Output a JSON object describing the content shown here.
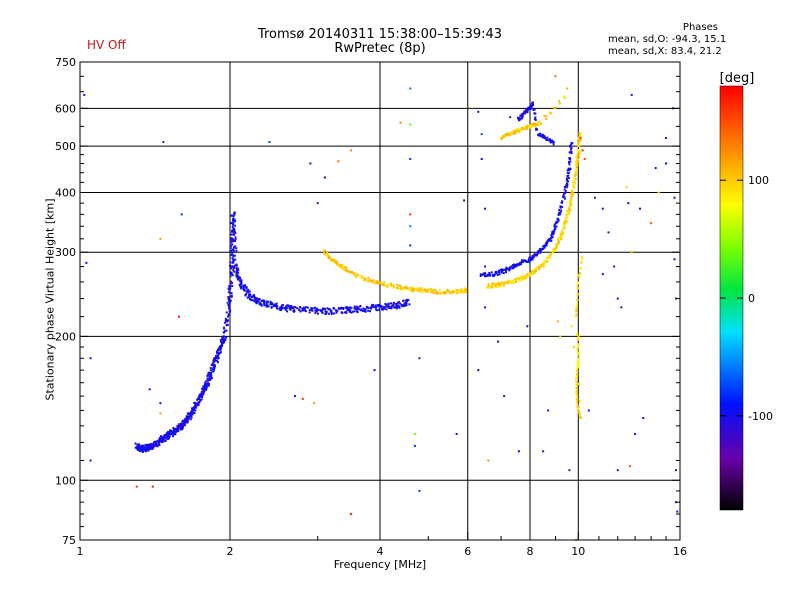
{
  "header": {
    "status": "HV Off",
    "title_line1": "Tromsø 20140311 15:38:00–15:39:43",
    "title_line2": "RwPretec (8p)"
  },
  "stats": {
    "heading": "Phases",
    "line_o": "mean, sd,O: -94.3, 15.1",
    "line_x": "mean, sd,X:  83.4, 21.2"
  },
  "colorbar": {
    "unit": "[deg]",
    "ticks": [
      "100",
      "0",
      "-100"
    ],
    "tick_values": [
      100,
      0,
      -100
    ],
    "range": [
      -180,
      180
    ]
  },
  "chart_data": {
    "type": "scatter",
    "xlabel": "Frequency [MHz]",
    "ylabel": "Stationary phase Virtual Height [km]",
    "xscale": "log",
    "yscale": "log",
    "xlim": [
      1,
      16
    ],
    "ylim": [
      75,
      750
    ],
    "x_ticks": [
      1,
      2,
      4,
      6,
      8,
      10,
      16
    ],
    "x_tick_labels": [
      "1",
      "2",
      "4",
      "6",
      "8",
      "10",
      "16"
    ],
    "y_ticks": [
      75,
      100,
      200,
      300,
      400,
      500,
      600,
      750
    ],
    "y_tick_labels": [
      "75",
      "100",
      "200",
      "300",
      "400",
      "500",
      "600",
      "750"
    ],
    "grid_x": [
      2,
      4,
      6,
      8,
      10
    ],
    "grid_y": [
      100,
      200,
      300,
      400,
      500,
      600
    ],
    "color_label": "phase [deg]",
    "traces": [
      {
        "phase": -100,
        "points": [
          [
            1.3,
            118
          ],
          [
            1.33,
            116
          ],
          [
            1.36,
            117
          ],
          [
            1.4,
            118
          ],
          [
            1.45,
            121
          ],
          [
            1.5,
            124
          ],
          [
            1.55,
            127
          ],
          [
            1.6,
            130
          ],
          [
            1.65,
            135
          ],
          [
            1.7,
            142
          ],
          [
            1.75,
            150
          ],
          [
            1.8,
            160
          ],
          [
            1.85,
            172
          ],
          [
            1.9,
            185
          ],
          [
            1.95,
            200
          ],
          [
            2.0,
            240
          ],
          [
            2.02,
            300
          ],
          [
            2.03,
            360
          ],
          [
            2.05,
            280
          ],
          [
            2.1,
            258
          ],
          [
            2.2,
            242
          ],
          [
            2.3,
            236
          ],
          [
            2.5,
            230
          ],
          [
            2.7,
            228
          ],
          [
            3.0,
            226
          ],
          [
            3.3,
            226
          ],
          [
            3.6,
            228
          ],
          [
            4.0,
            230
          ],
          [
            4.3,
            232
          ],
          [
            4.6,
            236
          ]
        ],
        "spread_x": 0.018,
        "spread_y": 0.03,
        "copies": 6
      },
      {
        "phase": 100,
        "points": [
          [
            3.1,
            300
          ],
          [
            3.3,
            282
          ],
          [
            3.6,
            268
          ],
          [
            4.0,
            258
          ],
          [
            4.4,
            253
          ],
          [
            4.8,
            250
          ],
          [
            5.2,
            248
          ],
          [
            5.7,
            248
          ],
          [
            6.0,
            250
          ]
        ],
        "spread_x": 0.012,
        "spread_y": 0.02,
        "copies": 5
      },
      {
        "phase": 95,
        "points": [
          [
            6.6,
            255
          ],
          [
            7.0,
            257
          ],
          [
            7.5,
            262
          ],
          [
            8.0,
            270
          ],
          [
            8.5,
            282
          ],
          [
            9.0,
            305
          ],
          [
            9.3,
            330
          ],
          [
            9.6,
            370
          ],
          [
            9.8,
            420
          ],
          [
            10.0,
            480
          ],
          [
            10.1,
            540
          ]
        ],
        "spread_x": 0.01,
        "spread_y": 0.02,
        "copies": 5
      },
      {
        "phase": -100,
        "points": [
          [
            6.4,
            268
          ],
          [
            6.8,
            270
          ],
          [
            7.2,
            276
          ],
          [
            7.6,
            284
          ],
          [
            8.0,
            290
          ],
          [
            8.4,
            302
          ],
          [
            8.8,
            320
          ],
          [
            9.1,
            350
          ],
          [
            9.4,
            400
          ],
          [
            9.6,
            450
          ],
          [
            9.7,
            520
          ]
        ],
        "spread_x": 0.01,
        "spread_y": 0.02,
        "copies": 4
      },
      {
        "phase": -100,
        "points": [
          [
            7.6,
            570
          ],
          [
            7.8,
            585
          ],
          [
            8.0,
            600
          ],
          [
            8.1,
            615
          ],
          [
            8.3,
            530
          ],
          [
            8.6,
            520
          ],
          [
            9.0,
            505
          ]
        ],
        "spread_x": 0.01,
        "spread_y": 0.015,
        "copies": 3
      },
      {
        "phase": 100,
        "points": [
          [
            7.0,
            520
          ],
          [
            7.3,
            530
          ],
          [
            7.6,
            540
          ],
          [
            8.0,
            550
          ],
          [
            8.4,
            560
          ],
          [
            9.6,
            650
          ]
        ],
        "spread_x": 0.01,
        "spread_y": 0.015,
        "copies": 3
      },
      {
        "phase": 90,
        "points": [
          [
            10.0,
            200
          ],
          [
            10.0,
            180
          ],
          [
            9.9,
            160
          ],
          [
            9.95,
            145
          ],
          [
            10.1,
            135
          ],
          [
            9.9,
            220
          ],
          [
            10.0,
            260
          ],
          [
            10.2,
            300
          ]
        ],
        "spread_x": 0.004,
        "spread_y": 0.02,
        "copies": 2
      }
    ],
    "scatter_points": [
      {
        "x": 1.02,
        "y": 640,
        "phase": -100
      },
      {
        "x": 1.03,
        "y": 285,
        "phase": -90
      },
      {
        "x": 1.05,
        "y": 110,
        "phase": -100
      },
      {
        "x": 1.05,
        "y": 180,
        "phase": -100
      },
      {
        "x": 1.3,
        "y": 97,
        "phase": 160
      },
      {
        "x": 1.4,
        "y": 97,
        "phase": 170
      },
      {
        "x": 1.47,
        "y": 510,
        "phase": -120
      },
      {
        "x": 1.6,
        "y": 360,
        "phase": -80
      },
      {
        "x": 1.45,
        "y": 320,
        "phase": 120
      },
      {
        "x": 1.58,
        "y": 220,
        "phase": 170
      },
      {
        "x": 1.45,
        "y": 145,
        "phase": -100
      },
      {
        "x": 1.45,
        "y": 138,
        "phase": 120
      },
      {
        "x": 1.38,
        "y": 155,
        "phase": -100
      },
      {
        "x": 2.4,
        "y": 510,
        "phase": -80
      },
      {
        "x": 2.9,
        "y": 460,
        "phase": -110
      },
      {
        "x": 3.0,
        "y": 380,
        "phase": -140
      },
      {
        "x": 3.1,
        "y": 430,
        "phase": -150
      },
      {
        "x": 3.3,
        "y": 465,
        "phase": 140
      },
      {
        "x": 3.5,
        "y": 490,
        "phase": 130
      },
      {
        "x": 3.5,
        "y": 85,
        "phase": 170
      },
      {
        "x": 2.8,
        "y": 148,
        "phase": 160
      },
      {
        "x": 2.95,
        "y": 145,
        "phase": 120
      },
      {
        "x": 2.7,
        "y": 150,
        "phase": -100
      },
      {
        "x": 3.9,
        "y": 170,
        "phase": -100
      },
      {
        "x": 4.4,
        "y": 560,
        "phase": 130
      },
      {
        "x": 4.6,
        "y": 555,
        "phase": 30
      },
      {
        "x": 4.6,
        "y": 660,
        "phase": -60
      },
      {
        "x": 4.6,
        "y": 470,
        "phase": -80
      },
      {
        "x": 4.6,
        "y": 360,
        "phase": 160
      },
      {
        "x": 4.6,
        "y": 340,
        "phase": -60
      },
      {
        "x": 4.6,
        "y": 310,
        "phase": -80
      },
      {
        "x": 4.7,
        "y": 125,
        "phase": 40
      },
      {
        "x": 4.7,
        "y": 118,
        "phase": -80
      },
      {
        "x": 4.8,
        "y": 95,
        "phase": -80
      },
      {
        "x": 4.8,
        "y": 180,
        "phase": -100
      },
      {
        "x": 5.7,
        "y": 125,
        "phase": -90
      },
      {
        "x": 5.9,
        "y": 385,
        "phase": -150
      },
      {
        "x": 6.3,
        "y": 590,
        "phase": -90
      },
      {
        "x": 6.4,
        "y": 530,
        "phase": -70
      },
      {
        "x": 6.4,
        "y": 470,
        "phase": -100
      },
      {
        "x": 6.5,
        "y": 370,
        "phase": -110
      },
      {
        "x": 6.5,
        "y": 280,
        "phase": -100
      },
      {
        "x": 6.5,
        "y": 230,
        "phase": -100
      },
      {
        "x": 6.6,
        "y": 110,
        "phase": 120
      },
      {
        "x": 6.3,
        "y": 170,
        "phase": -100
      },
      {
        "x": 6.9,
        "y": 195,
        "phase": -100
      },
      {
        "x": 7.1,
        "y": 150,
        "phase": -100
      },
      {
        "x": 7.3,
        "y": 575,
        "phase": -120
      },
      {
        "x": 7.6,
        "y": 115,
        "phase": -100
      },
      {
        "x": 9.0,
        "y": 700,
        "phase": 140
      },
      {
        "x": 9.5,
        "y": 660,
        "phase": 110
      },
      {
        "x": 8.5,
        "y": 115,
        "phase": -100
      },
      {
        "x": 8.7,
        "y": 140,
        "phase": -100
      },
      {
        "x": 9.6,
        "y": 105,
        "phase": -120
      },
      {
        "x": 9.9,
        "y": 75,
        "phase": 120
      },
      {
        "x": 10.2,
        "y": 490,
        "phase": 170
      },
      {
        "x": 10.1,
        "y": 520,
        "phase": 160
      },
      {
        "x": 10.3,
        "y": 470,
        "phase": 150
      },
      {
        "x": 10.8,
        "y": 390,
        "phase": -120
      },
      {
        "x": 11.2,
        "y": 370,
        "phase": -100
      },
      {
        "x": 11.2,
        "y": 270,
        "phase": -100
      },
      {
        "x": 11.5,
        "y": 330,
        "phase": -110
      },
      {
        "x": 11.8,
        "y": 280,
        "phase": -130
      },
      {
        "x": 12.0,
        "y": 240,
        "phase": -100
      },
      {
        "x": 12.5,
        "y": 410,
        "phase": 100
      },
      {
        "x": 12.6,
        "y": 380,
        "phase": -90
      },
      {
        "x": 12.8,
        "y": 300,
        "phase": 110
      },
      {
        "x": 12.2,
        "y": 230,
        "phase": -110
      },
      {
        "x": 12.0,
        "y": 105,
        "phase": -120
      },
      {
        "x": 12.7,
        "y": 107,
        "phase": 150
      },
      {
        "x": 12.8,
        "y": 640,
        "phase": -120
      },
      {
        "x": 13.3,
        "y": 370,
        "phase": -110
      },
      {
        "x": 14.0,
        "y": 345,
        "phase": 150
      },
      {
        "x": 14.3,
        "y": 450,
        "phase": -100
      },
      {
        "x": 15.0,
        "y": 520,
        "phase": -110
      },
      {
        "x": 15.5,
        "y": 600,
        "phase": -100
      },
      {
        "x": 15.6,
        "y": 390,
        "phase": -110
      },
      {
        "x": 15.6,
        "y": 290,
        "phase": -100
      },
      {
        "x": 15.7,
        "y": 240,
        "phase": -120
      },
      {
        "x": 15.7,
        "y": 105,
        "phase": -100
      },
      {
        "x": 15.7,
        "y": 90,
        "phase": -110
      },
      {
        "x": 15.8,
        "y": 86,
        "phase": -100
      },
      {
        "x": 13.5,
        "y": 135,
        "phase": -100
      },
      {
        "x": 14.5,
        "y": 400,
        "phase": 90
      },
      {
        "x": 15.0,
        "y": 460,
        "phase": -90
      },
      {
        "x": 10.5,
        "y": 140,
        "phase": -100
      },
      {
        "x": 13.0,
        "y": 125,
        "phase": -100
      },
      {
        "x": 9.2,
        "y": 200,
        "phase": 100
      },
      {
        "x": 9.1,
        "y": 215,
        "phase": 110
      },
      {
        "x": 7.9,
        "y": 210,
        "phase": -100
      },
      {
        "x": 9.7,
        "y": 210,
        "phase": 90
      },
      {
        "x": 9.8,
        "y": 190,
        "phase": 100
      }
    ]
  }
}
